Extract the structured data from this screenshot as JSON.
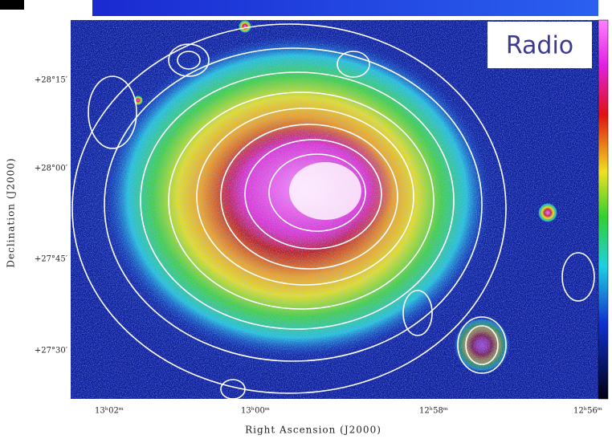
{
  "figure": {
    "overlay_label": "Radio",
    "y_axis": {
      "label": "Declination (J2000)",
      "ticks": [
        "+28°15′",
        "+28°00′",
        "+27°45′",
        "+27°30′"
      ]
    },
    "x_axis": {
      "label": "Right Ascension (J2000)",
      "ticks": [
        "13ʰ02ᵐ",
        "13ʰ00ᵐ",
        "12ʰ58ᵐ",
        "12ʰ56ᵐ"
      ]
    }
  }
}
